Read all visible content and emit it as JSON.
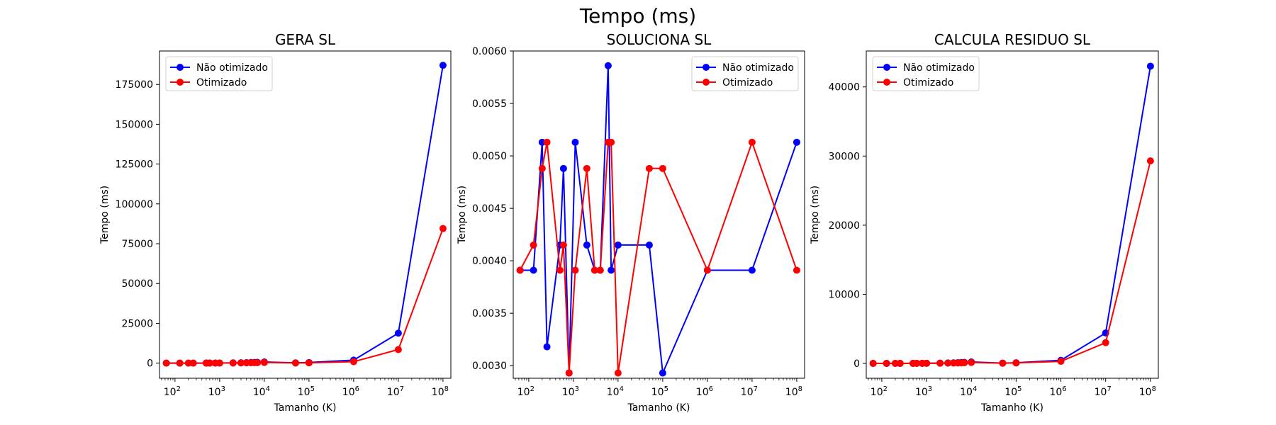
{
  "suptitle": "Tempo (ms)",
  "colors": {
    "series_1": "#0000ff",
    "series_2": "#ff0000"
  },
  "chart_data": [
    {
      "type": "line",
      "title": "GERA SL",
      "xlabel": "Tamanho (K)",
      "ylabel": "Tempo (ms)",
      "xscale": "log",
      "xlim": [
        45,
        150000000
      ],
      "ylim": [
        -9500,
        196000
      ],
      "xticks": [
        100,
        1000,
        10000,
        100000,
        1000000,
        10000000,
        100000000
      ],
      "yticks": [
        0,
        25000,
        50000,
        75000,
        100000,
        125000,
        150000,
        175000
      ],
      "ytick_labels": [
        "0",
        "25000",
        "50000",
        "75000",
        "100000",
        "125000",
        "150000",
        "175000"
      ],
      "grid": false,
      "legend_location": "upper left",
      "series": [
        {
          "name": "Não otimizado",
          "color": "#0000ff",
          "marker": "o",
          "points": [
            [
              64,
              5
            ],
            [
              128,
              10
            ],
            [
              200,
              15
            ],
            [
              256,
              20
            ],
            [
              500,
              40
            ],
            [
              512,
              40
            ],
            [
              600,
              45
            ],
            [
              800,
              60
            ],
            [
              1000,
              75
            ],
            [
              2000,
              150
            ],
            [
              3000,
              220
            ],
            [
              4000,
              300
            ],
            [
              5000,
              370
            ],
            [
              6000,
              440
            ],
            [
              7000,
              510
            ],
            [
              10000,
              730
            ],
            [
              50000,
              180
            ],
            [
              100000,
              360
            ],
            [
              1000000,
              1900
            ],
            [
              10000000,
              18800
            ],
            [
              100000000,
              187000
            ]
          ]
        },
        {
          "name": "Otimizado",
          "color": "#ff0000",
          "marker": "o",
          "points": [
            [
              64,
              3
            ],
            [
              128,
              6
            ],
            [
              200,
              9
            ],
            [
              256,
              12
            ],
            [
              500,
              22
            ],
            [
              512,
              22
            ],
            [
              600,
              26
            ],
            [
              800,
              35
            ],
            [
              1000,
              44
            ],
            [
              2000,
              88
            ],
            [
              3000,
              130
            ],
            [
              4000,
              175
            ],
            [
              5000,
              220
            ],
            [
              6000,
              265
            ],
            [
              7000,
              310
            ],
            [
              10000,
              440
            ],
            [
              50000,
              90
            ],
            [
              100000,
              180
            ],
            [
              1000000,
              900
            ],
            [
              10000000,
              8500
            ],
            [
              100000000,
              84500
            ]
          ]
        }
      ]
    },
    {
      "type": "line",
      "title": "SOLUCIONA SL",
      "xlabel": "Tamanho (K)",
      "ylabel": "Tempo (ms)",
      "xscale": "log",
      "xlim": [
        45,
        150000000
      ],
      "ylim": [
        0.00288,
        0.006
      ],
      "xticks": [
        100,
        1000,
        10000,
        100000,
        1000000,
        10000000,
        100000000
      ],
      "yticks": [
        0.003,
        0.0035,
        0.004,
        0.0045,
        0.005,
        0.0055,
        0.006
      ],
      "ytick_labels": [
        "0.0030",
        "0.0035",
        "0.0040",
        "0.0045",
        "0.0050",
        "0.0055",
        "0.0060"
      ],
      "grid": false,
      "legend_location": "upper right",
      "series": [
        {
          "name": "Não otimizado",
          "color": "#0000ff",
          "marker": "o",
          "points": [
            [
              64,
              0.00391
            ],
            [
              128,
              0.00391
            ],
            [
              200,
              0.00513
            ],
            [
              256,
              0.00318
            ],
            [
              500,
              0.00415
            ],
            [
              600,
              0.00488
            ],
            [
              800,
              0.00293
            ],
            [
              1100,
              0.00513
            ],
            [
              2000,
              0.00415
            ],
            [
              3000,
              0.00391
            ],
            [
              4000,
              0.00391
            ],
            [
              6000,
              0.00586
            ],
            [
              7000,
              0.00391
            ],
            [
              10000,
              0.00415
            ],
            [
              50000,
              0.00415
            ],
            [
              100000,
              0.00293
            ],
            [
              1000000,
              0.00391
            ],
            [
              10000000,
              0.00391
            ],
            [
              100000000,
              0.00513
            ]
          ]
        },
        {
          "name": "Otimizado",
          "color": "#ff0000",
          "marker": "o",
          "points": [
            [
              64,
              0.00391
            ],
            [
              128,
              0.00415
            ],
            [
              200,
              0.00488
            ],
            [
              256,
              0.00513
            ],
            [
              500,
              0.00391
            ],
            [
              600,
              0.00415
            ],
            [
              800,
              0.00293
            ],
            [
              1100,
              0.00391
            ],
            [
              2000,
              0.00488
            ],
            [
              3000,
              0.00391
            ],
            [
              4000,
              0.00391
            ],
            [
              6000,
              0.00513
            ],
            [
              7000,
              0.00513
            ],
            [
              10000,
              0.00293
            ],
            [
              50000,
              0.00488
            ],
            [
              100000,
              0.00488
            ],
            [
              1000000,
              0.00391
            ],
            [
              10000000,
              0.00513
            ],
            [
              100000000,
              0.00391
            ]
          ]
        }
      ]
    },
    {
      "type": "line",
      "title": "CALCULA RESIDUO SL",
      "xlabel": "Tamanho (K)",
      "ylabel": "Tempo (ms)",
      "xscale": "log",
      "xlim": [
        45,
        150000000
      ],
      "ylim": [
        -2150,
        45200
      ],
      "xticks": [
        100,
        1000,
        10000,
        100000,
        1000000,
        10000000,
        100000000
      ],
      "yticks": [
        0,
        10000,
        20000,
        30000,
        40000
      ],
      "ytick_labels": [
        "0",
        "10000",
        "20000",
        "30000",
        "40000"
      ],
      "grid": false,
      "legend_location": "upper left",
      "series": [
        {
          "name": "Não otimizado",
          "color": "#0000ff",
          "marker": "o",
          "points": [
            [
              64,
              2
            ],
            [
              128,
              3
            ],
            [
              200,
              5
            ],
            [
              256,
              6
            ],
            [
              500,
              11
            ],
            [
              600,
              13
            ],
            [
              800,
              17
            ],
            [
              1000,
              21
            ],
            [
              2000,
              42
            ],
            [
              3000,
              63
            ],
            [
              4000,
              84
            ],
            [
              5000,
              105
            ],
            [
              6000,
              126
            ],
            [
              7000,
              147
            ],
            [
              10000,
              210
            ],
            [
              50000,
              45
            ],
            [
              100000,
              90
            ],
            [
              1000000,
              450
            ],
            [
              10000000,
              4400
            ],
            [
              100000000,
              43000
            ]
          ]
        },
        {
          "name": "Otimizado",
          "color": "#ff0000",
          "marker": "o",
          "points": [
            [
              64,
              1
            ],
            [
              128,
              2
            ],
            [
              200,
              3
            ],
            [
              256,
              4
            ],
            [
              500,
              7
            ],
            [
              600,
              8
            ],
            [
              800,
              11
            ],
            [
              1000,
              14
            ],
            [
              2000,
              28
            ],
            [
              3000,
              42
            ],
            [
              4000,
              56
            ],
            [
              5000,
              70
            ],
            [
              6000,
              84
            ],
            [
              7000,
              98
            ],
            [
              10000,
              140
            ],
            [
              50000,
              30
            ],
            [
              100000,
              60
            ],
            [
              1000000,
              300
            ],
            [
              10000000,
              3000
            ],
            [
              100000000,
              29300
            ]
          ]
        }
      ]
    }
  ]
}
